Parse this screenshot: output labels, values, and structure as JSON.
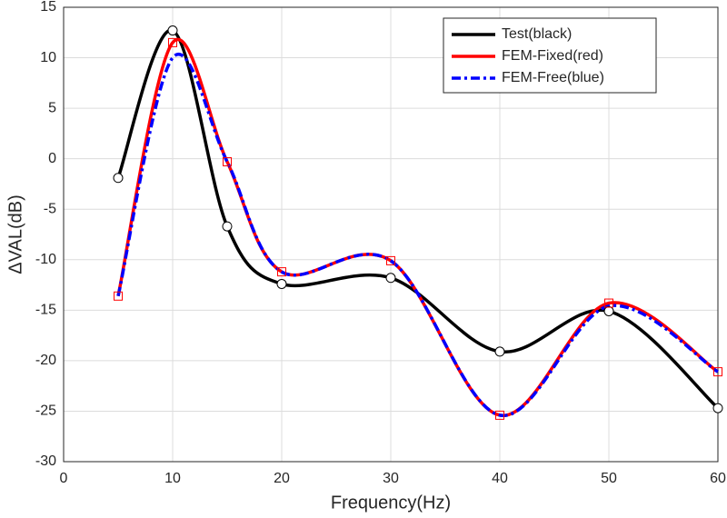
{
  "chart_data": {
    "type": "line",
    "xlabel": "Frequency(Hz)",
    "ylabel": "ΔVAL(dB)",
    "x": [
      5,
      10,
      15,
      20,
      30,
      40,
      50,
      60
    ],
    "series": [
      {
        "name": "Test(black)",
        "color": "#000000",
        "dash": "solid",
        "marker": "circle",
        "values": [
          -1.9,
          12.7,
          -6.7,
          -12.4,
          -11.8,
          -19.1,
          -15.1,
          -24.7
        ]
      },
      {
        "name": "FEM-Fixed(red)",
        "color": "#ff0000",
        "dash": "solid",
        "marker": "square",
        "values": [
          -13.6,
          11.5,
          -0.3,
          -11.2,
          -10.1,
          -25.4,
          -14.3,
          -21.1
        ]
      },
      {
        "name": "FEM-Free(blue)",
        "color": "#0000ff",
        "dash": "dashdot",
        "marker": "none",
        "values": [
          -13.6,
          10.0,
          -0.3,
          -11.2,
          -10.1,
          -25.4,
          -14.6,
          -21.1
        ]
      }
    ],
    "xlim": [
      0,
      60
    ],
    "xticks": [
      0,
      10,
      20,
      30,
      40,
      50,
      60
    ],
    "ylim": [
      -30,
      15
    ],
    "yticks": [
      -30,
      -25,
      -20,
      -15,
      -10,
      -5,
      0,
      5,
      10,
      15
    ],
    "grid": true,
    "legend": "top-right"
  }
}
